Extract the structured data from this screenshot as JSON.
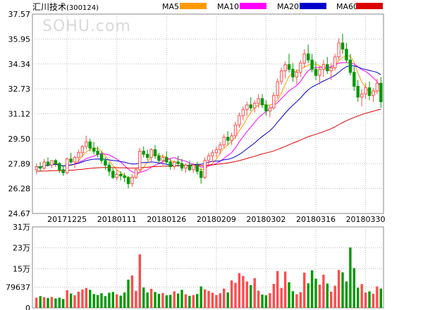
{
  "stock": {
    "name": "汇川技术",
    "code": "(300124)"
  },
  "watermark": "SOHU.com",
  "legend": [
    {
      "label": "MA5",
      "color": "#ff9900"
    },
    {
      "label": "MA10",
      "color": "#ff00ff"
    },
    {
      "label": "MA20",
      "color": "#0000cc"
    },
    {
      "label": "MA60",
      "color": "#dd0000"
    }
  ],
  "colors": {
    "up": "#ff4c4c",
    "down": "#009900",
    "grid": "#bbbbbb",
    "frame": "#888888"
  },
  "chart_data": {
    "type": "candlestick",
    "price_axis": {
      "ticks": [
        "37.57",
        "35.95",
        "34.34",
        "32.73",
        "31.12",
        "29.50",
        "27.89",
        "26.28",
        "24.67"
      ],
      "range": [
        24.67,
        37.57
      ]
    },
    "volume_axis": {
      "ticks": [
        "31万",
        "23万",
        "15万",
        "79637",
        "0"
      ]
    },
    "date_labels": [
      {
        "label": "20171225",
        "index": 8
      },
      {
        "label": "20180111",
        "index": 21
      },
      {
        "label": "20180126",
        "index": 34
      },
      {
        "label": "20180209",
        "index": 47
      },
      {
        "label": "20180302",
        "index": 60
      },
      {
        "label": "20180316",
        "index": 73
      },
      {
        "label": "20180330",
        "index": 86
      }
    ],
    "ohlc": [
      [
        27.5,
        27.9,
        27.2,
        27.7
      ],
      [
        27.7,
        28.0,
        27.4,
        27.6
      ],
      [
        27.6,
        28.2,
        27.5,
        28.0
      ],
      [
        28.0,
        28.3,
        27.7,
        27.8
      ],
      [
        27.8,
        28.1,
        27.6,
        28.1
      ],
      [
        28.1,
        28.2,
        27.7,
        27.9
      ],
      [
        27.9,
        28.0,
        27.3,
        27.5
      ],
      [
        27.5,
        27.8,
        27.1,
        27.3
      ],
      [
        27.3,
        28.3,
        27.2,
        28.2
      ],
      [
        28.2,
        28.6,
        27.9,
        28.0
      ],
      [
        28.0,
        28.4,
        27.6,
        28.3
      ],
      [
        28.3,
        28.8,
        28.0,
        28.6
      ],
      [
        28.6,
        29.1,
        28.3,
        29.0
      ],
      [
        29.0,
        29.7,
        28.8,
        29.3
      ],
      [
        29.3,
        29.5,
        28.7,
        28.9
      ],
      [
        28.9,
        29.3,
        28.5,
        28.7
      ],
      [
        28.7,
        29.0,
        28.3,
        28.5
      ],
      [
        28.5,
        28.7,
        27.9,
        28.1
      ],
      [
        28.1,
        28.3,
        27.5,
        27.8
      ],
      [
        27.8,
        28.0,
        27.1,
        27.4
      ],
      [
        27.4,
        27.6,
        26.9,
        27.0
      ],
      [
        27.0,
        27.5,
        26.8,
        27.2
      ],
      [
        27.2,
        27.4,
        26.8,
        27.1
      ],
      [
        27.1,
        27.3,
        26.7,
        27.0
      ],
      [
        27.0,
        27.1,
        26.3,
        26.6
      ],
      [
        26.6,
        27.2,
        26.4,
        27.0
      ],
      [
        27.0,
        27.6,
        26.9,
        27.5
      ],
      [
        27.5,
        28.9,
        27.4,
        28.7
      ],
      [
        28.7,
        29.0,
        28.3,
        28.5
      ],
      [
        28.5,
        28.8,
        28.1,
        28.3
      ],
      [
        28.3,
        28.9,
        28.0,
        28.8
      ],
      [
        28.8,
        29.1,
        28.2,
        28.4
      ],
      [
        28.4,
        28.6,
        27.9,
        28.1
      ],
      [
        28.1,
        28.5,
        27.8,
        28.3
      ],
      [
        28.3,
        28.7,
        27.9,
        28.0
      ],
      [
        28.0,
        28.2,
        27.5,
        27.7
      ],
      [
        27.7,
        28.1,
        27.5,
        28.0
      ],
      [
        28.0,
        28.4,
        27.7,
        27.9
      ],
      [
        27.9,
        28.2,
        27.4,
        27.6
      ],
      [
        27.6,
        27.9,
        27.3,
        27.8
      ],
      [
        27.8,
        28.1,
        27.4,
        27.5
      ],
      [
        27.5,
        27.9,
        27.3,
        27.8
      ],
      [
        27.8,
        28.0,
        27.2,
        27.4
      ],
      [
        27.4,
        27.6,
        26.6,
        27.0
      ],
      [
        27.0,
        28.3,
        26.9,
        28.1
      ],
      [
        28.1,
        28.6,
        27.8,
        28.4
      ],
      [
        28.4,
        28.8,
        28.0,
        28.6
      ],
      [
        28.6,
        29.0,
        28.3,
        28.8
      ],
      [
        28.8,
        29.3,
        28.5,
        29.1
      ],
      [
        29.1,
        29.8,
        28.9,
        29.6
      ],
      [
        29.6,
        30.0,
        29.1,
        29.4
      ],
      [
        29.4,
        29.9,
        29.1,
        29.7
      ],
      [
        29.7,
        30.6,
        29.5,
        30.4
      ],
      [
        30.4,
        31.2,
        30.2,
        31.0
      ],
      [
        31.0,
        31.6,
        30.7,
        31.4
      ],
      [
        31.4,
        31.9,
        31.0,
        31.7
      ],
      [
        31.7,
        32.2,
        31.3,
        31.5
      ],
      [
        31.5,
        32.0,
        31.2,
        31.8
      ],
      [
        31.8,
        32.4,
        31.5,
        32.1
      ],
      [
        32.1,
        32.4,
        31.5,
        31.7
      ],
      [
        31.7,
        32.0,
        31.0,
        31.3
      ],
      [
        31.3,
        31.7,
        30.9,
        31.5
      ],
      [
        31.5,
        32.5,
        31.4,
        32.3
      ],
      [
        32.3,
        33.4,
        32.1,
        33.2
      ],
      [
        33.2,
        34.1,
        33.0,
        33.9
      ],
      [
        33.9,
        34.5,
        33.4,
        34.3
      ],
      [
        34.3,
        35.0,
        33.8,
        34.0
      ],
      [
        34.0,
        34.4,
        33.2,
        33.5
      ],
      [
        33.5,
        34.0,
        33.0,
        33.8
      ],
      [
        33.8,
        34.6,
        33.5,
        34.4
      ],
      [
        34.4,
        35.3,
        34.1,
        35.0
      ],
      [
        35.0,
        35.6,
        34.4,
        34.6
      ],
      [
        34.6,
        35.0,
        33.8,
        34.0
      ],
      [
        34.0,
        34.5,
        33.3,
        33.6
      ],
      [
        33.6,
        34.2,
        33.0,
        34.0
      ],
      [
        34.0,
        34.6,
        33.5,
        34.3
      ],
      [
        34.3,
        34.8,
        33.7,
        33.9
      ],
      [
        33.9,
        34.4,
        33.3,
        34.1
      ],
      [
        34.1,
        35.0,
        33.9,
        34.8
      ],
      [
        34.8,
        36.0,
        34.6,
        35.7
      ],
      [
        35.7,
        36.3,
        35.0,
        35.3
      ],
      [
        35.3,
        35.7,
        34.4,
        34.6
      ],
      [
        34.6,
        35.0,
        33.6,
        33.8
      ],
      [
        33.8,
        34.2,
        32.6,
        32.9
      ],
      [
        32.9,
        33.3,
        31.9,
        32.2
      ],
      [
        32.2,
        32.7,
        31.6,
        32.4
      ],
      [
        32.4,
        33.1,
        32.1,
        32.8
      ],
      [
        32.8,
        33.2,
        32.0,
        32.3
      ],
      [
        32.3,
        32.8,
        31.9,
        32.6
      ],
      [
        32.6,
        33.4,
        32.4,
        33.1
      ],
      [
        33.1,
        33.5,
        31.5,
        31.9
      ]
    ],
    "volume": [
      3.9,
      4.5,
      4.1,
      3.8,
      4.2,
      3.6,
      3.9,
      3.4,
      6.8,
      5.5,
      4.8,
      6.2,
      7.0,
      7.6,
      6.9,
      5.3,
      4.9,
      5.6,
      4.5,
      5.8,
      6.1,
      5.2,
      4.7,
      5.9,
      10.8,
      12.4,
      6.5,
      20.5,
      7.8,
      5.9,
      7.3,
      6.1,
      5.4,
      5.7,
      4.8,
      5.0,
      6.3,
      5.5,
      6.9,
      5.2,
      4.6,
      4.9,
      5.3,
      8.2,
      7.1,
      6.5,
      5.8,
      4.9,
      5.6,
      7.4,
      5.9,
      10.5,
      9.6,
      13.3,
      12.2,
      10.1,
      8.7,
      11.4,
      6.6,
      5.1,
      4.8,
      5.6,
      9.2,
      14.1,
      7.6,
      13.9,
      9.8,
      6.4,
      5.2,
      6.0,
      13.5,
      9.4,
      14.4,
      11.2,
      8.9,
      12.7,
      9.3,
      6.2,
      8.5,
      14.5,
      13.6,
      10.1,
      23.1,
      15.2,
      7.7,
      9.1,
      5.9,
      6.3,
      5.4,
      8.2,
      7.4
    ]
  }
}
